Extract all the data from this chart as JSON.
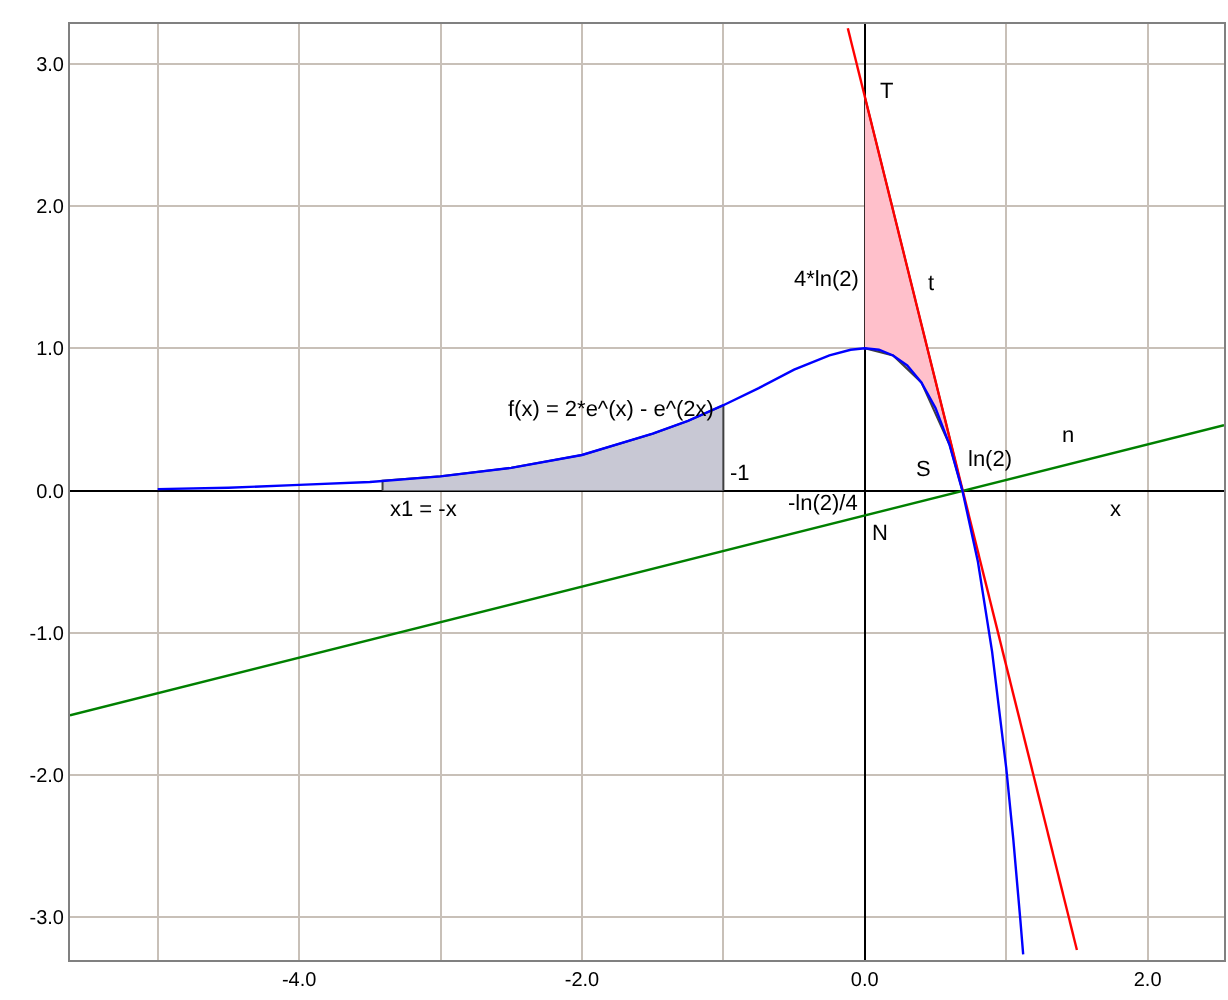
{
  "chart_data": {
    "type": "line",
    "xlim": [
      -5.62,
      2.54
    ],
    "ylim": [
      -3.3,
      3.28
    ],
    "xticks": [
      {
        "value": -5,
        "label": null
      },
      {
        "value": -4,
        "label": "-4.0"
      },
      {
        "value": -3,
        "label": null
      },
      {
        "value": -2,
        "label": "-2.0"
      },
      {
        "value": -1,
        "label": null
      },
      {
        "value": 0,
        "label": "0.0"
      },
      {
        "value": 1,
        "label": null
      },
      {
        "value": 2,
        "label": "2.0"
      }
    ],
    "yticks": [
      {
        "value": -3,
        "label": "-3.0"
      },
      {
        "value": -2,
        "label": "-2.0"
      },
      {
        "value": -1,
        "label": "-1.0"
      },
      {
        "value": 0,
        "label": "0.0"
      },
      {
        "value": 1,
        "label": "1.0"
      },
      {
        "value": 2,
        "label": "2.0"
      },
      {
        "value": 3,
        "label": "3.0"
      }
    ],
    "grid": true,
    "marker": "none",
    "line_style": "solid",
    "series": [
      {
        "type": "area",
        "color": "#c8c8d4",
        "x": [
          -3.41,
          -3,
          -2.5,
          -2,
          -1.5,
          -1.25,
          -1
        ],
        "values": [
          0.07,
          0.1,
          0.16,
          0.25,
          0.4,
          0.49,
          0.6
        ]
      },
      {
        "type": "area",
        "color": "#ffc0cb",
        "x": [
          0,
          0.2,
          0.4,
          0.6,
          0.69,
          0.6,
          0.4,
          0.2,
          0
        ],
        "values": [
          2.77,
          1.97,
          1.17,
          0.37,
          0,
          0.32,
          0.76,
          0.95,
          1
        ]
      },
      {
        "color": "#008000",
        "x": [
          -5.62,
          2.54
        ],
        "values": [
          -1.58,
          0.46
        ]
      },
      {
        "color": "#ff0000",
        "x": [
          -0.12,
          1.5
        ],
        "values": [
          3.25,
          -3.23
        ]
      },
      {
        "color": "#0000ff",
        "x": [
          -5,
          -4.5,
          -4,
          -3.5,
          -3,
          -2.5,
          -2,
          -1.5,
          -1.25,
          -1,
          -0.75,
          -0.5,
          -0.25,
          -0.1,
          0,
          0.1,
          0.2,
          0.3,
          0.4,
          0.5,
          0.6,
          0.69,
          0.8,
          0.9,
          1.0,
          1.05,
          1.1,
          1.12
        ],
        "values": [
          0.01,
          0.02,
          0.04,
          0.06,
          0.1,
          0.16,
          0.25,
          0.4,
          0.49,
          0.6,
          0.72,
          0.85,
          0.95,
          0.99,
          1,
          0.99,
          0.95,
          0.88,
          0.76,
          0.58,
          0.32,
          0,
          -0.5,
          -1.13,
          -1.95,
          -2.45,
          -3.02,
          -3.26
        ]
      }
    ],
    "annotations": [
      "f(x) = 2*e^(x) - e^(2x)",
      "-1",
      "x1 = -x",
      "x",
      "4*ln(2)",
      "T",
      "t",
      "n",
      "S",
      "N",
      "ln(2)",
      "-ln(2)/4"
    ]
  }
}
